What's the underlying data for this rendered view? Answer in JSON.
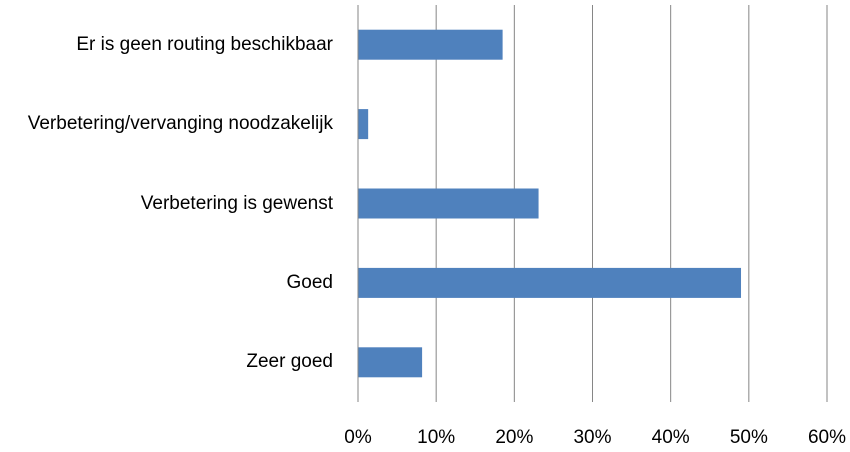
{
  "chart_data": {
    "type": "bar",
    "orientation": "horizontal",
    "categories": [
      "Er is geen routing beschikbaar",
      "Verbetering/vervanging noodzakelijk",
      "Verbetering is gewenst",
      "Goed",
      "Zeer goed"
    ],
    "values": [
      18.5,
      1.3,
      23.1,
      49,
      8.2
    ],
    "color": "#4f81bd",
    "xlim": [
      0,
      60
    ],
    "xticks": [
      {
        "value": 0,
        "label": "0%"
      },
      {
        "value": 10,
        "label": "10%"
      },
      {
        "value": 20,
        "label": "20%"
      },
      {
        "value": 30,
        "label": "30%"
      },
      {
        "value": 40,
        "label": "40%"
      },
      {
        "value": 50,
        "label": "50%"
      },
      {
        "value": 60,
        "label": "60%"
      }
    ],
    "grid": true
  }
}
